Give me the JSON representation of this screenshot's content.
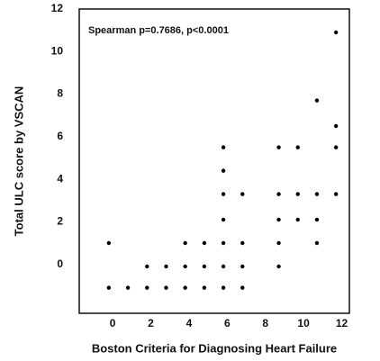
{
  "chart_data": {
    "type": "scatter",
    "annotation": "Spearman  p=0.7686,  p<0.0001",
    "x_label": "Boston Criteria for Diagnosing Heart Failure",
    "y_label": "Total ULC score by VSCAN",
    "color": "#000000",
    "x": [
      -0.2,
      -0.2,
      0.8,
      1.8,
      1.8,
      2.8,
      2.8,
      3.8,
      3.8,
      3.8,
      4.8,
      4.8,
      4.8,
      5.8,
      5.8,
      5.8,
      5.8,
      5.8,
      5.8,
      5.8,
      6.8,
      6.8,
      6.8,
      6.8,
      8.7,
      8.7,
      8.7,
      8.7,
      8.7,
      9.7,
      9.7,
      9.7,
      10.7,
      10.7,
      10.7,
      10.7,
      11.7,
      11.7,
      11.7,
      11.7
    ],
    "y": [
      1.0,
      -1.1,
      -1.1,
      -0.1,
      -1.1,
      -0.1,
      -1.1,
      1.0,
      -0.1,
      -1.1,
      1.0,
      -0.1,
      -1.1,
      5.5,
      4.4,
      3.3,
      2.1,
      1.0,
      -0.1,
      -1.1,
      3.3,
      1.0,
      -0.1,
      -1.1,
      5.5,
      3.3,
      2.1,
      1.0,
      -0.1,
      5.5,
      3.3,
      2.1,
      7.7,
      3.3,
      2.1,
      1.0,
      10.9,
      6.5,
      5.5,
      3.3
    ],
    "xlim": [
      -1.75,
      12.4
    ],
    "ylim": [
      -2.3,
      12
    ],
    "xticks": [
      0,
      2,
      4,
      6,
      8,
      10,
      12
    ],
    "yticks": [
      0,
      2,
      4,
      6,
      8,
      10,
      12
    ],
    "grid": false
  }
}
